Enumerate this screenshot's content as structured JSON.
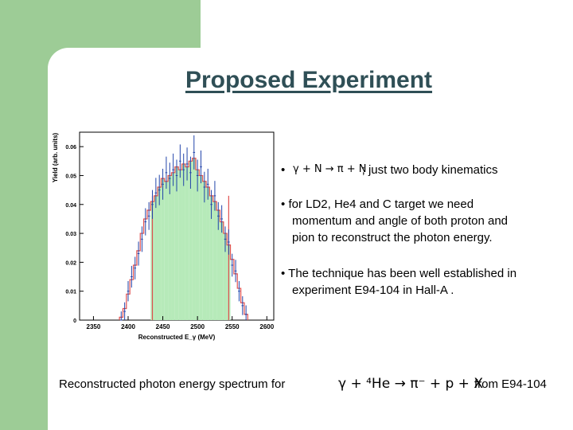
{
  "title": "Proposed Experiment",
  "bullets": {
    "b1_formula": "γ + N → π + N",
    "b1_text": "; just two body kinematics",
    "b2_line1": "for LD2, He4 and C target we  need",
    "b2_line2": "momentum and angle of both proton and",
    "b2_line3": "pion to reconstruct the photon energy.",
    "b3_line1": "The technique has been well established in",
    "b3_line2": "experiment E94-104 in Hall-A ."
  },
  "caption": {
    "text": "Reconstructed photon energy spectrum for",
    "formula": "γ + ⁴He → π⁻ + p + X",
    "source": "from E94-104"
  },
  "chart_data": {
    "type": "bar",
    "xlabel": "Reconstructed E_γ (MeV)",
    "ylabel": "Yield (arb. units)",
    "xlim": [
      2330,
      2610
    ],
    "ylim": [
      0,
      0.065
    ],
    "xticks": [
      "2350",
      "2400",
      "2450",
      "2500",
      "2550",
      "2600"
    ],
    "yticks": [
      "0",
      "0.01",
      "0.02",
      "0.03",
      "0.04",
      "0.05",
      "0.06"
    ],
    "shaded_range": [
      2435,
      2545
    ],
    "bin_width": 5,
    "x": [
      2390,
      2395,
      2400,
      2405,
      2410,
      2415,
      2420,
      2425,
      2430,
      2435,
      2440,
      2445,
      2450,
      2455,
      2460,
      2465,
      2470,
      2475,
      2480,
      2485,
      2490,
      2495,
      2500,
      2505,
      2510,
      2515,
      2520,
      2525,
      2530,
      2535,
      2540,
      2545,
      2550,
      2555,
      2560,
      2565,
      2570
    ],
    "sim": [
      0.001,
      0.004,
      0.009,
      0.014,
      0.019,
      0.024,
      0.03,
      0.035,
      0.038,
      0.041,
      0.043,
      0.046,
      0.049,
      0.048,
      0.05,
      0.051,
      0.053,
      0.052,
      0.054,
      0.053,
      0.055,
      0.056,
      0.052,
      0.05,
      0.048,
      0.046,
      0.043,
      0.041,
      0.038,
      0.034,
      0.03,
      0.026,
      0.021,
      0.016,
      0.011,
      0.006,
      0.002
    ],
    "data": [
      0.0,
      0.003,
      0.01,
      0.015,
      0.018,
      0.023,
      0.028,
      0.034,
      0.036,
      0.04,
      0.044,
      0.045,
      0.047,
      0.051,
      0.049,
      0.052,
      0.05,
      0.055,
      0.052,
      0.054,
      0.051,
      0.058,
      0.05,
      0.053,
      0.046,
      0.047,
      0.04,
      0.043,
      0.036,
      0.035,
      0.028,
      0.027,
      0.019,
      0.017,
      0.01,
      0.005,
      0.002
    ]
  }
}
